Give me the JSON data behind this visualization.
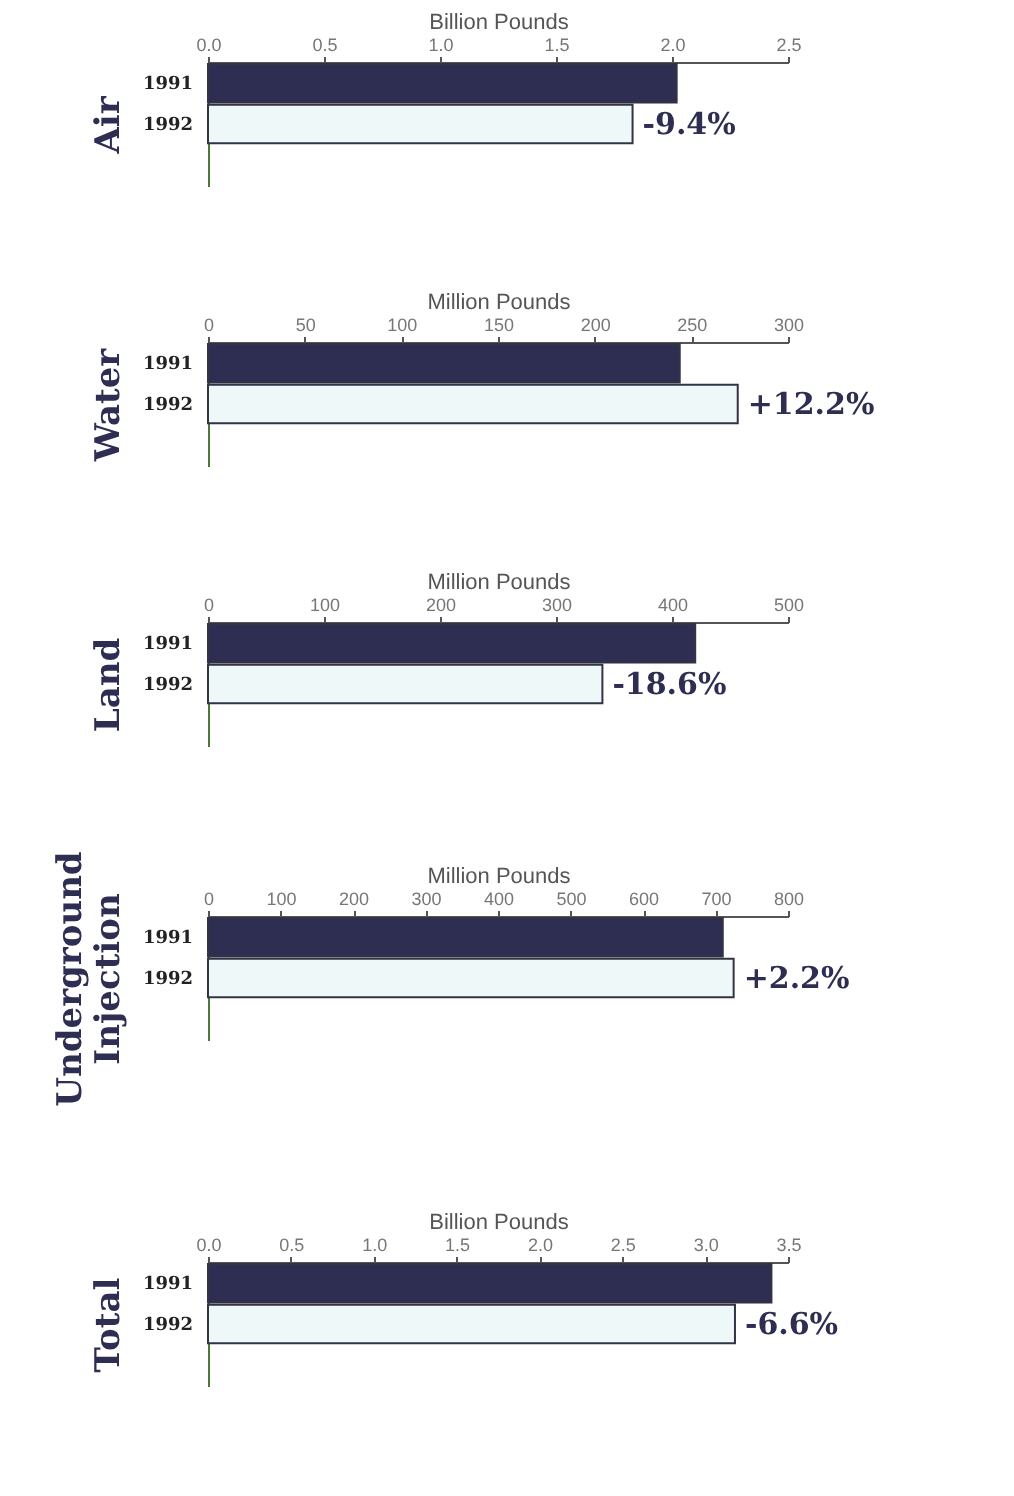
{
  "chart_data": [
    {
      "type": "bar",
      "orientation": "horizontal",
      "ylabel": "Air",
      "xlabel": "Billion Pounds",
      "categories": [
        "1991",
        "1992"
      ],
      "values": [
        2.02,
        1.83
      ],
      "colors": [
        "#2e2d52",
        "#eef8f8"
      ],
      "xlim": [
        0,
        2.5
      ],
      "xticks": [
        {
          "value": 0,
          "label": "0.0"
        },
        0.5,
        {
          "value": 1,
          "label": "1.0"
        },
        1.5,
        {
          "value": 2,
          "label": "2.0"
        },
        2.5
      ],
      "annotations": [
        {
          "text": "-9.4%",
          "x": 1.83,
          "y": "1992"
        }
      ]
    },
    {
      "type": "bar",
      "orientation": "horizontal",
      "ylabel": "Water",
      "xlabel": "Million Pounds",
      "categories": [
        "1991",
        "1992"
      ],
      "values": [
        244,
        274
      ],
      "colors": [
        "#2e2d52",
        "#eef8f8"
      ],
      "xlim": [
        0,
        300
      ],
      "xticks": [
        0,
        50,
        100,
        150,
        200,
        250,
        300
      ],
      "annotations": [
        {
          "text": "+12.2%",
          "x": 274,
          "y": "1992"
        }
      ]
    },
    {
      "type": "bar",
      "orientation": "horizontal",
      "ylabel": "Land",
      "xlabel": "Million Pounds",
      "categories": [
        "1991",
        "1992"
      ],
      "values": [
        420,
        340
      ],
      "colors": [
        "#2e2d52",
        "#eef8f8"
      ],
      "xlim": [
        0,
        500
      ],
      "xticks": [
        0,
        100,
        200,
        300,
        400,
        500
      ],
      "annotations": [
        {
          "text": "-18.6%",
          "x": 340,
          "y": "1992"
        }
      ]
    },
    {
      "type": "bar",
      "orientation": "horizontal",
      "ylabel": "Underground Injection",
      "xlabel": "Million Pounds",
      "categories": [
        "1991",
        "1992"
      ],
      "values": [
        710,
        725
      ],
      "colors": [
        "#2e2d52",
        "#eef8f8"
      ],
      "xlim": [
        0,
        800
      ],
      "xticks": [
        0,
        100,
        200,
        300,
        400,
        500,
        600,
        700,
        800
      ],
      "annotations": [
        {
          "text": "+2.2%",
          "x": 725,
          "y": "1992"
        }
      ]
    },
    {
      "type": "bar",
      "orientation": "horizontal",
      "ylabel": "Total",
      "xlabel": "Billion Pounds",
      "categories": [
        "1991",
        "1992"
      ],
      "values": [
        3.4,
        3.18
      ],
      "colors": [
        "#2e2d52",
        "#eef8f8"
      ],
      "xlim": [
        0,
        3.5
      ],
      "xticks": [
        {
          "value": 0,
          "label": "0.0"
        },
        0.5,
        {
          "value": 1,
          "label": "1.0"
        },
        1.5,
        {
          "value": 2,
          "label": "2.0"
        },
        2.5,
        {
          "value": 3,
          "label": "3.0"
        },
        3.5
      ],
      "annotations": [
        {
          "text": "-6.6%",
          "x": 3.18,
          "y": "1992"
        }
      ]
    }
  ]
}
